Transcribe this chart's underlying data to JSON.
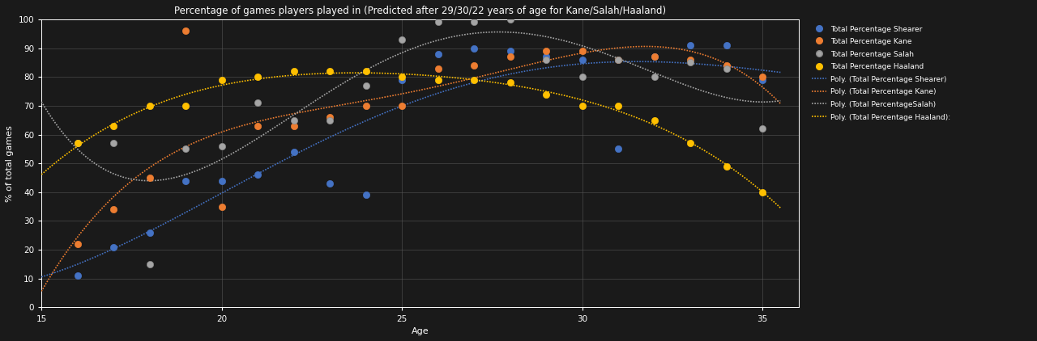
{
  "title": "Percentage of games players played in (Predicted after 29/30/22 years of age for Kane/Salah/Haaland)",
  "xlabel": "Age",
  "ylabel": "% of total games",
  "xlim": [
    15,
    36
  ],
  "ylim": [
    0,
    100
  ],
  "yticks": [
    0,
    10,
    20,
    30,
    40,
    50,
    60,
    70,
    80,
    90,
    100
  ],
  "xticks": [
    15,
    20,
    25,
    30,
    35
  ],
  "colors": {
    "shearer": "#4472C4",
    "kane": "#ED7D31",
    "salah": "#A5A5A5",
    "haaland": "#FFC000"
  },
  "shearer_dots": [
    [
      16,
      11
    ],
    [
      17,
      21
    ],
    [
      18,
      26
    ],
    [
      19,
      44
    ],
    [
      20,
      44
    ],
    [
      21,
      46
    ],
    [
      22,
      54
    ],
    [
      23,
      43
    ],
    [
      24,
      39
    ],
    [
      25,
      79
    ],
    [
      26,
      88
    ],
    [
      27,
      90
    ],
    [
      28,
      89
    ],
    [
      29,
      87
    ],
    [
      30,
      86
    ],
    [
      31,
      55
    ],
    [
      32,
      87
    ],
    [
      33,
      91
    ],
    [
      34,
      91
    ],
    [
      35,
      79
    ]
  ],
  "kane_dots": [
    [
      16,
      22
    ],
    [
      17,
      34
    ],
    [
      18,
      45
    ],
    [
      19,
      96
    ],
    [
      20,
      35
    ],
    [
      21,
      63
    ],
    [
      22,
      63
    ],
    [
      23,
      66
    ],
    [
      24,
      70
    ],
    [
      25,
      70
    ],
    [
      26,
      83
    ],
    [
      27,
      84
    ],
    [
      28,
      87
    ],
    [
      29,
      89
    ],
    [
      30,
      89
    ],
    [
      31,
      86
    ],
    [
      32,
      87
    ],
    [
      33,
      86
    ],
    [
      34,
      84
    ],
    [
      35,
      80
    ]
  ],
  "salah_dots": [
    [
      16,
      57
    ],
    [
      17,
      57
    ],
    [
      18,
      15
    ],
    [
      19,
      55
    ],
    [
      20,
      56
    ],
    [
      21,
      71
    ],
    [
      22,
      65
    ],
    [
      23,
      65
    ],
    [
      24,
      77
    ],
    [
      25,
      93
    ],
    [
      26,
      99
    ],
    [
      27,
      99
    ],
    [
      28,
      100
    ],
    [
      29,
      86
    ],
    [
      30,
      80
    ],
    [
      31,
      86
    ],
    [
      32,
      80
    ],
    [
      33,
      85
    ],
    [
      34,
      83
    ],
    [
      35,
      62
    ]
  ],
  "haaland_dots": [
    [
      16,
      57
    ],
    [
      17,
      63
    ],
    [
      18,
      70
    ],
    [
      19,
      70
    ],
    [
      20,
      79
    ],
    [
      21,
      80
    ],
    [
      22,
      82
    ],
    [
      23,
      82
    ],
    [
      24,
      82
    ],
    [
      25,
      80
    ],
    [
      26,
      79
    ],
    [
      27,
      79
    ],
    [
      28,
      78
    ],
    [
      29,
      74
    ],
    [
      30,
      70
    ],
    [
      31,
      70
    ],
    [
      32,
      65
    ],
    [
      33,
      57
    ],
    [
      34,
      49
    ],
    [
      35,
      40
    ]
  ],
  "legend_labels": {
    "shearer_dot": "Total Percentage Shearer",
    "kane_dot": "Total Percentage Kane",
    "salah_dot": "Total Percentage Salah",
    "haaland_dot": "Total Percentage Haaland",
    "shearer_line": "Poly. (Total Percentage Shearer)",
    "kane_line": "Poly. (Total Percentage Kane)",
    "salah_line": "Poly. (Total PercentageSalah)",
    "haaland_line": "Poly. (Total Percentage Haaland):"
  },
  "bg_color": "#1a1a1a",
  "text_color": "#ffffff",
  "grid_color": "#555555",
  "marker_size": 35,
  "line_width": 1.2,
  "title_fontsize": 8.5,
  "label_fontsize": 8,
  "tick_fontsize": 7.5,
  "legend_fontsize": 6.5
}
